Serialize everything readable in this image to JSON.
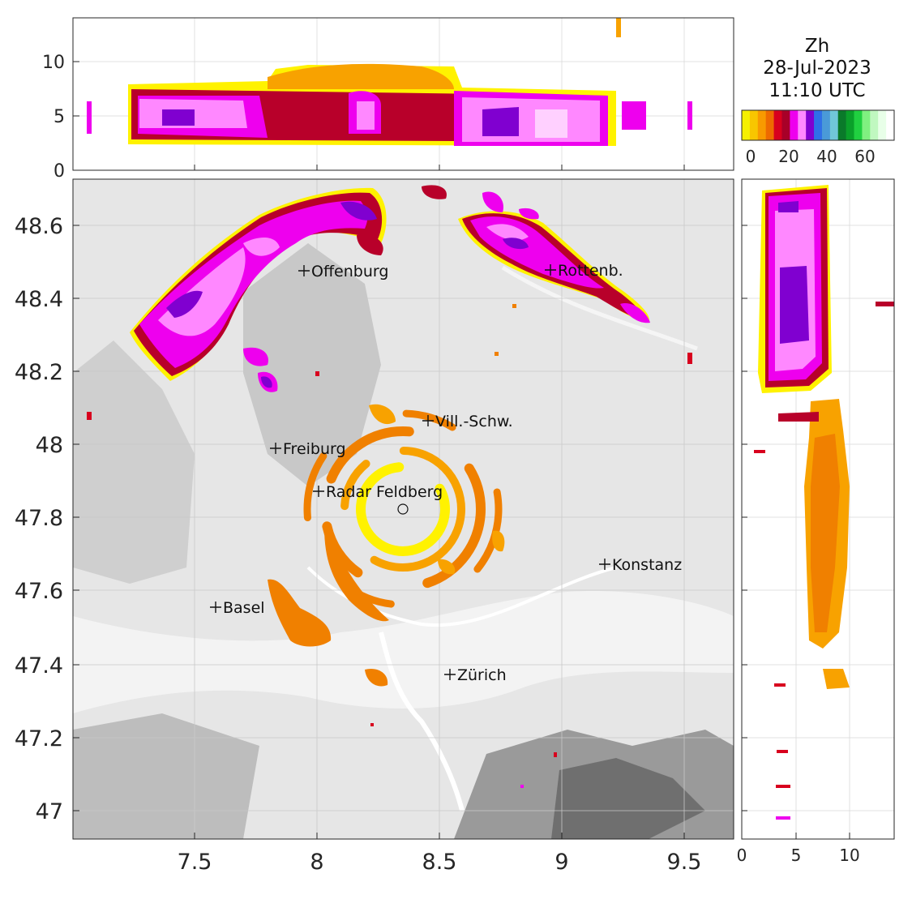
{
  "title": {
    "variable": "Zh",
    "date": "28-Jul-2023",
    "time": "11:10 UTC"
  },
  "colorbar": {
    "colors": [
      "#f5f000",
      "#f8c600",
      "#f89a00",
      "#ee6a00",
      "#d8001e",
      "#a80028",
      "#ee00ee",
      "#ff88ff",
      "#8000d0",
      "#2f6fe8",
      "#4a9ad8",
      "#70c7d8",
      "#0a7a2a",
      "#0aa02a",
      "#20d040",
      "#80f080",
      "#c0f8c0",
      "#e8ffe8",
      "#ffffff"
    ],
    "tick_labels": [
      "0",
      "20",
      "40",
      "60"
    ]
  },
  "map": {
    "x_tick_labels": [
      "7.5",
      "8",
      "8.5",
      "9",
      "9.5"
    ],
    "y_tick_labels": [
      "48.6",
      "48.4",
      "48.2",
      "48",
      "47.8",
      "47.6",
      "47.4",
      "47.2",
      "47"
    ],
    "cities": [
      {
        "name": "Offenburg",
        "label": "Offenburg"
      },
      {
        "name": "Rottenburg",
        "label": "Rottenb."
      },
      {
        "name": "Villingen-Schwenningen",
        "label": "Vill.-Schw."
      },
      {
        "name": "Freiburg",
        "label": "Freiburg"
      },
      {
        "name": "Radar Feldberg",
        "label": "Radar Feldberg"
      },
      {
        "name": "Konstanz",
        "label": "Konstanz"
      },
      {
        "name": "Basel",
        "label": "Basel"
      },
      {
        "name": "Zürich",
        "label": "Zürich"
      }
    ]
  },
  "top_section": {
    "y_tick_labels": [
      "10",
      "5",
      "0"
    ]
  },
  "right_section": {
    "x_tick_labels": [
      "0",
      "5",
      "10"
    ]
  }
}
